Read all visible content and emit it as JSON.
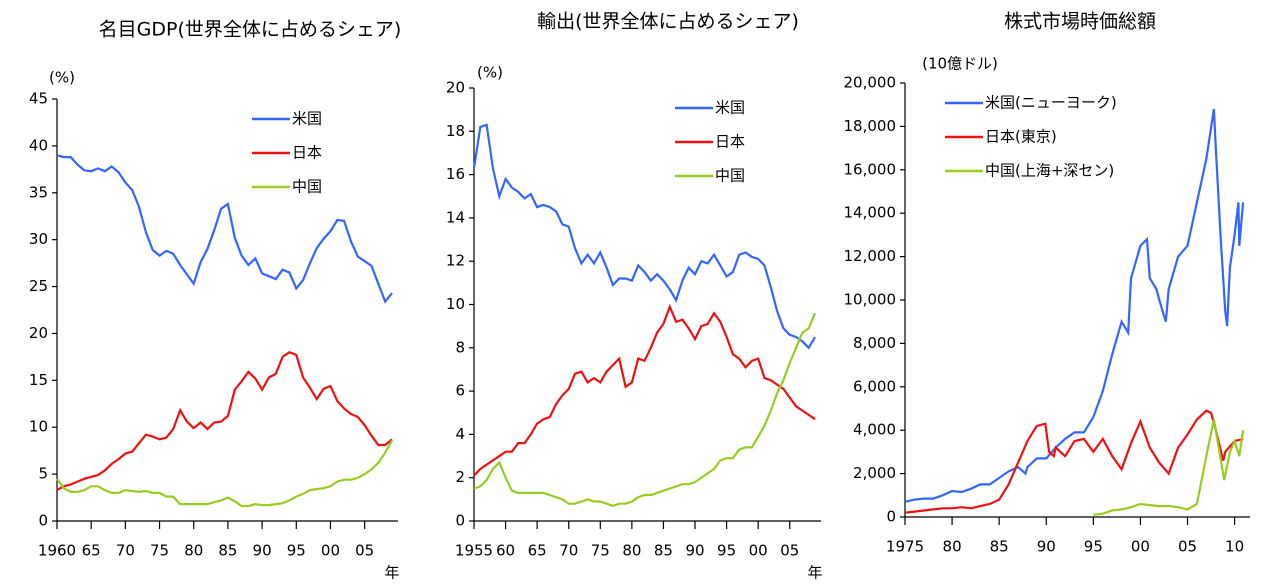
{
  "chart_data": [
    {
      "type": "line",
      "title": "名目GDP(世界全体に占めるシェア)",
      "y_unit": "(%)",
      "x_label": "年",
      "legend": "upper right",
      "x": [
        1960,
        1961,
        1962,
        1963,
        1964,
        1965,
        1966,
        1967,
        1968,
        1969,
        1970,
        1971,
        1972,
        1973,
        1974,
        1975,
        1976,
        1977,
        1978,
        1979,
        1980,
        1981,
        1982,
        1983,
        1984,
        1985,
        1986,
        1987,
        1988,
        1989,
        1990,
        1991,
        1992,
        1993,
        1994,
        1995,
        1996,
        1997,
        1998,
        1999,
        2000,
        2001,
        2002,
        2003,
        2004,
        2005,
        2006,
        2007,
        2008,
        2009
      ],
      "xlim": [
        1960,
        2009
      ],
      "xticks": [
        1960,
        {
          "value": 1965,
          "label": "65"
        },
        {
          "value": 1970,
          "label": "70"
        },
        {
          "value": 1975,
          "label": "75"
        },
        {
          "value": 1980,
          "label": "80"
        },
        {
          "value": 1985,
          "label": "85"
        },
        {
          "value": 1990,
          "label": "90"
        },
        {
          "value": 1995,
          "label": "95"
        },
        {
          "value": 2000,
          "label": "00"
        },
        {
          "value": 2005,
          "label": "05"
        }
      ],
      "ylim": [
        0,
        45
      ],
      "yticks": [
        0,
        5,
        10,
        15,
        20,
        25,
        30,
        35,
        40,
        45
      ],
      "series": [
        {
          "name": "米国",
          "color": "#3366ff",
          "values": [
            39,
            38.8,
            38.8,
            38,
            37.4,
            37.3,
            37.6,
            37.3,
            37.8,
            37.2,
            36.1,
            35.3,
            33.5,
            30.8,
            28.9,
            28.3,
            28.8,
            28.5,
            27.3,
            26.3,
            25.3,
            27.6,
            29,
            31,
            33.3,
            33.8,
            30.2,
            28.3,
            27.3,
            28,
            26.4,
            26.1,
            25.8,
            26.8,
            26.5,
            24.8,
            25.7,
            27.5,
            29.1,
            30.1,
            30.9,
            32.1,
            32,
            29.8,
            28.2,
            27.7,
            27.2,
            25.3,
            23.4,
            24.3
          ]
        },
        {
          "name": "日本",
          "color": "#ee1111",
          "values": [
            3.3,
            3.7,
            3.9,
            4.2,
            4.5,
            4.7,
            4.9,
            5.4,
            6.1,
            6.6,
            7.2,
            7.4,
            8.3,
            9.2,
            9,
            8.7,
            8.9,
            9.8,
            11.8,
            10.6,
            9.9,
            10.5,
            9.8,
            10.5,
            10.6,
            11.2,
            14,
            14.9,
            15.9,
            15.2,
            14,
            15.3,
            15.7,
            17.5,
            18,
            17.7,
            15.3,
            14.2,
            13,
            14.1,
            14.4,
            12.8,
            12,
            11.4,
            11.1,
            10.2,
            9.1,
            8.1,
            8.1,
            8.7
          ]
        },
        {
          "name": "中国",
          "color": "#99cc22",
          "values": [
            4.5,
            3.5,
            3.1,
            3.1,
            3.3,
            3.7,
            3.7,
            3.3,
            3,
            3,
            3.3,
            3.2,
            3.1,
            3.2,
            3,
            3,
            2.6,
            2.6,
            1.8,
            1.8,
            1.8,
            1.8,
            1.8,
            2,
            2.2,
            2.5,
            2.1,
            1.6,
            1.6,
            1.8,
            1.7,
            1.7,
            1.8,
            1.9,
            2.2,
            2.6,
            2.9,
            3.3,
            3.4,
            3.5,
            3.7,
            4.2,
            4.4,
            4.4,
            4.6,
            5,
            5.5,
            6.2,
            7.3,
            8.6
          ]
        }
      ]
    },
    {
      "type": "line",
      "title": "輸出(世界全体に占めるシェア)",
      "y_unit": "(%)",
      "x_label": "年",
      "legend": "upper right",
      "x": [
        1955,
        1956,
        1957,
        1958,
        1959,
        1960,
        1961,
        1962,
        1963,
        1964,
        1965,
        1966,
        1967,
        1968,
        1969,
        1970,
        1971,
        1972,
        1973,
        1974,
        1975,
        1976,
        1977,
        1978,
        1979,
        1980,
        1981,
        1982,
        1983,
        1984,
        1985,
        1986,
        1987,
        1988,
        1989,
        1990,
        1991,
        1992,
        1993,
        1994,
        1995,
        1996,
        1997,
        1998,
        1999,
        2000,
        2001,
        2002,
        2003,
        2004,
        2005,
        2006,
        2007,
        2008,
        2009
      ],
      "xlim": [
        1955,
        2009
      ],
      "xticks": [
        1955,
        {
          "value": 1960,
          "label": "60"
        },
        {
          "value": 1965,
          "label": "65"
        },
        {
          "value": 1970,
          "label": "70"
        },
        {
          "value": 1975,
          "label": "75"
        },
        {
          "value": 1980,
          "label": "80"
        },
        {
          "value": 1985,
          "label": "85"
        },
        {
          "value": 1990,
          "label": "90"
        },
        {
          "value": 1995,
          "label": "95"
        },
        {
          "value": 2000,
          "label": "00"
        },
        {
          "value": 2005,
          "label": "05"
        }
      ],
      "ylim": [
        0,
        20
      ],
      "yticks": [
        0,
        2,
        4,
        6,
        8,
        10,
        12,
        14,
        16,
        18,
        20
      ],
      "series": [
        {
          "name": "米国",
          "color": "#3366ff",
          "values": [
            16.3,
            18.2,
            18.3,
            16.3,
            15,
            15.8,
            15.4,
            15.2,
            14.9,
            15.1,
            14.5,
            14.6,
            14.5,
            14.3,
            13.7,
            13.6,
            12.6,
            11.9,
            12.3,
            11.9,
            12.4,
            11.7,
            10.9,
            11.2,
            11.2,
            11.1,
            11.8,
            11.5,
            11.1,
            11.4,
            11.1,
            10.7,
            10.2,
            11.1,
            11.7,
            11.4,
            12,
            11.9,
            12.3,
            11.8,
            11.3,
            11.5,
            12.3,
            12.4,
            12.2,
            12.1,
            11.8,
            10.8,
            9.7,
            8.9,
            8.6,
            8.5,
            8.3,
            8,
            8.5
          ]
        },
        {
          "name": "日本",
          "color": "#ee1111",
          "values": [
            2.1,
            2.4,
            2.6,
            2.8,
            3,
            3.2,
            3.2,
            3.6,
            3.6,
            4,
            4.5,
            4.7,
            4.8,
            5.4,
            5.8,
            6.1,
            6.8,
            6.9,
            6.4,
            6.6,
            6.4,
            6.9,
            7.2,
            7.5,
            6.2,
            6.4,
            7.5,
            7.4,
            8,
            8.7,
            9.1,
            9.9,
            9.2,
            9.3,
            8.9,
            8.4,
            9,
            9.1,
            9.6,
            9.2,
            8.5,
            7.7,
            7.5,
            7.1,
            7.4,
            7.5,
            6.6,
            6.5,
            6.3,
            6.1,
            5.7,
            5.3,
            5.1,
            4.9,
            4.7
          ]
        },
        {
          "name": "中国",
          "color": "#99cc22",
          "values": [
            1.5,
            1.6,
            1.9,
            2.4,
            2.7,
            2,
            1.4,
            1.3,
            1.3,
            1.3,
            1.3,
            1.3,
            1.2,
            1.1,
            1,
            0.8,
            0.8,
            0.9,
            1,
            0.9,
            0.9,
            0.8,
            0.7,
            0.8,
            0.8,
            0.9,
            1.1,
            1.2,
            1.2,
            1.3,
            1.4,
            1.5,
            1.6,
            1.7,
            1.7,
            1.8,
            2,
            2.2,
            2.4,
            2.8,
            2.9,
            2.9,
            3.3,
            3.4,
            3.4,
            3.9,
            4.4,
            5.1,
            5.9,
            6.5,
            7.3,
            8,
            8.7,
            8.9,
            9.6
          ]
        }
      ]
    },
    {
      "type": "line",
      "title": "株式市場時価総額",
      "y_unit": "(10億ドル)",
      "legend": "upper left",
      "xlim": [
        1975,
        2011
      ],
      "xticks": [
        1975,
        {
          "value": 1980,
          "label": "80"
        },
        {
          "value": 1985,
          "label": "85"
        },
        {
          "value": 1990,
          "label": "90"
        },
        {
          "value": 1995,
          "label": "95"
        },
        {
          "value": 2000,
          "label": "00"
        },
        {
          "value": 2005,
          "label": "05"
        },
        {
          "value": 2010,
          "label": "10"
        }
      ],
      "ylim": [
        0,
        20000
      ],
      "yticks": [
        0,
        {
          "value": 2000,
          "label": "2,000"
        },
        {
          "value": 4000,
          "label": "4,000"
        },
        {
          "value": 6000,
          "label": "6,000"
        },
        {
          "value": 8000,
          "label": "8,000"
        },
        {
          "value": 10000,
          "label": "10,000"
        },
        {
          "value": 12000,
          "label": "12,000"
        },
        {
          "value": 14000,
          "label": "14,000"
        },
        {
          "value": 16000,
          "label": "16,000"
        },
        {
          "value": 18000,
          "label": "18,000"
        },
        {
          "value": 20000,
          "label": "20,000"
        }
      ],
      "series": [
        {
          "name": "米国(ニューヨーク)",
          "color": "#3366ff",
          "x": [
            1975,
            1976,
            1977,
            1978,
            1979,
            1980,
            1981,
            1982,
            1983,
            1984,
            1985,
            1986,
            1987,
            1987.8,
            1988,
            1989,
            1990,
            1991,
            1992,
            1993,
            1994,
            1995,
            1996,
            1997,
            1998,
            1998.7,
            1999,
            2000,
            2000.7,
            2001,
            2001.7,
            2002,
            2002.7,
            2003,
            2004,
            2005,
            2006,
            2007,
            2007.8,
            2008,
            2008.5,
            2009,
            2009.2,
            2009.5,
            2010,
            2010.4,
            2010.5,
            2010.9
          ],
          "values": [
            700,
            800,
            850,
            850,
            1000,
            1200,
            1150,
            1300,
            1500,
            1500,
            1800,
            2100,
            2300,
            2000,
            2300,
            2700,
            2700,
            3200,
            3600,
            3900,
            3900,
            4600,
            5800,
            7500,
            9000,
            8500,
            11000,
            12500,
            12800,
            11000,
            10500,
            10000,
            9000,
            10500,
            12000,
            12500,
            14500,
            16500,
            18800,
            17000,
            13000,
            9500,
            8800,
            11500,
            13000,
            14500,
            12500,
            14500
          ]
        },
        {
          "name": "日本(東京)",
          "color": "#ee1111",
          "x": [
            1975,
            1976,
            1977,
            1978,
            1979,
            1980,
            1981,
            1982,
            1983,
            1984,
            1985,
            1986,
            1987,
            1988,
            1989,
            1989.9,
            1990.3,
            1990.8,
            1991,
            1992,
            1993,
            1994,
            1995,
            1996,
            1997,
            1998,
            1999,
            2000,
            2001,
            2002,
            2003,
            2004,
            2005,
            2006,
            2007,
            2007.5,
            2008,
            2008.8,
            2009,
            2010,
            2010.9
          ],
          "values": [
            200,
            250,
            300,
            350,
            400,
            400,
            450,
            400,
            500,
            600,
            800,
            1500,
            2500,
            3500,
            4200,
            4300,
            3000,
            2800,
            3200,
            2800,
            3500,
            3600,
            3000,
            3600,
            2800,
            2200,
            3400,
            4400,
            3200,
            2500,
            2000,
            3200,
            3800,
            4500,
            4900,
            4800,
            4000,
            2600,
            3000,
            3500,
            3600
          ]
        },
        {
          "name": "中国(上海+深セン)",
          "color": "#99cc22",
          "x": [
            1995,
            1996,
            1997,
            1998,
            1999,
            2000,
            2001,
            2002,
            2003,
            2004,
            2005,
            2006,
            2007,
            2007.8,
            2008.2,
            2008.9,
            2009.5,
            2010,
            2010.5,
            2010.9
          ],
          "values": [
            100,
            150,
            300,
            350,
            450,
            600,
            550,
            500,
            500,
            450,
            350,
            600,
            2800,
            4500,
            3500,
            1700,
            3000,
            3500,
            2800,
            4000
          ]
        }
      ]
    }
  ]
}
